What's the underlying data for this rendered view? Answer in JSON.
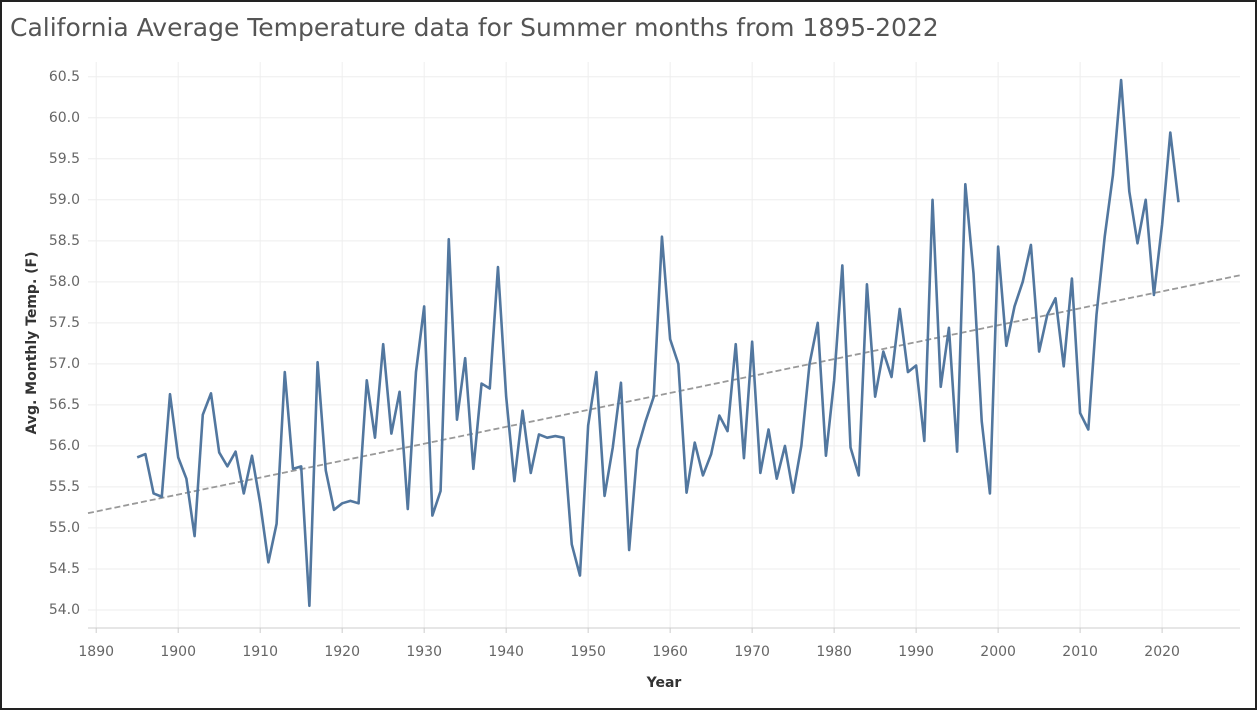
{
  "chart_data": {
    "type": "line",
    "title": "California Average Temperature  data for Summer months from 1895-2022",
    "x_label": "Year",
    "y_label": "Avg. Monthly Temp. (F)",
    "x": [
      1895,
      1896,
      1897,
      1898,
      1899,
      1900,
      1901,
      1902,
      1903,
      1904,
      1905,
      1906,
      1907,
      1908,
      1909,
      1910,
      1911,
      1912,
      1913,
      1914,
      1915,
      1916,
      1917,
      1918,
      1919,
      1920,
      1921,
      1922,
      1923,
      1924,
      1925,
      1926,
      1927,
      1928,
      1929,
      1930,
      1931,
      1932,
      1933,
      1934,
      1935,
      1936,
      1937,
      1938,
      1939,
      1940,
      1941,
      1942,
      1943,
      1944,
      1945,
      1946,
      1947,
      1948,
      1949,
      1950,
      1951,
      1952,
      1953,
      1954,
      1955,
      1956,
      1957,
      1958,
      1959,
      1960,
      1961,
      1962,
      1963,
      1964,
      1965,
      1966,
      1967,
      1968,
      1969,
      1970,
      1971,
      1972,
      1973,
      1974,
      1975,
      1976,
      1977,
      1978,
      1979,
      1980,
      1981,
      1982,
      1983,
      1984,
      1985,
      1986,
      1987,
      1988,
      1989,
      1990,
      1991,
      1992,
      1993,
      1994,
      1995,
      1996,
      1997,
      1998,
      1999,
      2000,
      2001,
      2002,
      2003,
      2004,
      2005,
      2006,
      2007,
      2008,
      2009,
      2010,
      2011,
      2012,
      2013,
      2014,
      2015,
      2016,
      2017,
      2018,
      2019,
      2020,
      2021,
      2022
    ],
    "series": [
      {
        "color": "#52779f",
        "values": [
          55.86,
          55.9,
          55.42,
          55.38,
          56.63,
          55.86,
          55.6,
          54.9,
          56.38,
          56.64,
          55.92,
          55.75,
          55.93,
          55.42,
          55.88,
          55.3,
          54.58,
          55.05,
          56.9,
          55.72,
          55.75,
          54.05,
          57.02,
          55.7,
          55.22,
          55.3,
          55.33,
          55.3,
          56.8,
          56.1,
          57.24,
          56.15,
          56.66,
          55.23,
          56.9,
          57.7,
          55.15,
          55.45,
          58.52,
          56.32,
          57.07,
          55.72,
          56.76,
          56.7,
          58.18,
          56.6,
          55.57,
          56.43,
          55.67,
          56.14,
          56.1,
          56.12,
          56.1,
          54.8,
          54.42,
          56.25,
          56.9,
          55.39,
          55.98,
          56.77,
          54.73,
          55.95,
          56.3,
          56.6,
          58.55,
          57.3,
          57.0,
          55.43,
          56.04,
          55.64,
          55.9,
          56.37,
          56.18,
          57.24,
          55.85,
          57.27,
          55.67,
          56.2,
          55.6,
          56.0,
          55.43,
          56.0,
          57.0,
          57.5,
          55.88,
          56.8,
          58.2,
          55.98,
          55.64,
          57.97,
          56.6,
          57.15,
          56.84,
          57.67,
          56.9,
          56.98,
          56.06,
          59.0,
          56.72,
          57.44,
          55.93,
          59.19,
          58.1,
          56.3,
          55.42,
          58.43,
          57.22,
          57.7,
          58.0,
          58.45,
          57.15,
          57.6,
          57.8,
          56.97,
          58.04,
          56.4,
          56.2,
          57.6,
          58.55,
          59.3,
          60.46,
          59.1,
          58.47,
          59.0,
          57.84,
          58.7,
          59.82,
          58.97
        ]
      }
    ],
    "trendline": {
      "x": [
        1889,
        2029.5
      ],
      "values": [
        55.18,
        58.08
      ],
      "color": "#999999"
    },
    "xlim": [
      1889,
      2029.5
    ],
    "xticks": [
      1890,
      1900,
      1910,
      1920,
      1930,
      1940,
      1950,
      1960,
      1970,
      1980,
      1990,
      2000,
      2010,
      2020
    ],
    "ylim": [
      53.78,
      60.68
    ],
    "yticks": [
      {
        "value": 54,
        "label": "54.0"
      },
      54.5,
      {
        "value": 55,
        "label": "55.0"
      },
      55.5,
      {
        "value": 56,
        "label": "56.0"
      },
      56.5,
      {
        "value": 57,
        "label": "57.0"
      },
      57.5,
      {
        "value": 58,
        "label": "58.0"
      },
      58.5,
      {
        "value": 59,
        "label": "59.0"
      },
      59.5,
      {
        "value": 60,
        "label": "60.0"
      },
      60.5
    ],
    "grid": true
  }
}
